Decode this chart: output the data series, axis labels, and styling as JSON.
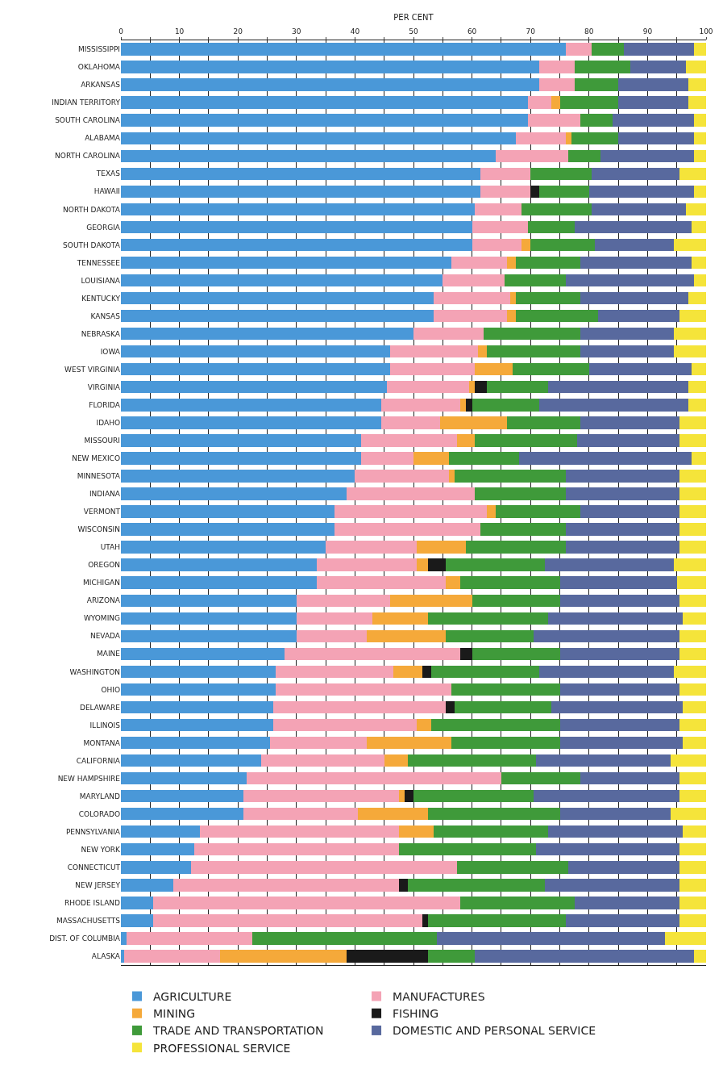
{
  "chart_data": {
    "type": "bar",
    "orientation": "horizontal",
    "stacked": true,
    "xlabel": "PER CENT",
    "categories": [
      "MISSISSIPPI",
      "OKLAHOMA",
      "ARKANSAS",
      "INDIAN TERRITORY",
      "SOUTH CAROLINA",
      "ALABAMA",
      "NORTH CAROLINA",
      "TEXAS",
      "HAWAII",
      "NORTH DAKOTA",
      "GEORGIA",
      "SOUTH DAKOTA",
      "TENNESSEE",
      "LOUISIANA",
      "KENTUCKY",
      "KANSAS",
      "NEBRASKA",
      "IOWA",
      "WEST VIRGINIA",
      "VIRGINIA",
      "FLORIDA",
      "IDAHO",
      "MISSOURI",
      "NEW MEXICO",
      "MINNESOTA",
      "INDIANA",
      "VERMONT",
      "WISCONSIN",
      "UTAH",
      "OREGON",
      "MICHIGAN",
      "ARIZONA",
      "WYOMING",
      "NEVADA",
      "MAINE",
      "WASHINGTON",
      "OHIO",
      "DELAWARE",
      "ILLINOIS",
      "MONTANA",
      "CALIFORNIA",
      "NEW HAMPSHIRE",
      "MARYLAND",
      "COLORADO",
      "PENNSYLVANIA",
      "NEW YORK",
      "CONNECTICUT",
      "NEW JERSEY",
      "RHODE ISLAND",
      "MASSACHUSETTS",
      "DIST. OF COLUMBIA",
      "ALASKA"
    ],
    "series": [
      {
        "name": "AGRICULTURE",
        "color": "#4a98d8",
        "values": [
          76,
          71.5,
          71.5,
          69.5,
          69.5,
          67.5,
          64,
          61.5,
          61.5,
          60.5,
          60,
          60,
          56.5,
          55,
          53.5,
          53.5,
          50,
          46,
          46,
          45.5,
          44.5,
          44.5,
          41,
          41,
          40,
          38.5,
          36.5,
          36.5,
          35,
          33.5,
          33.5,
          30,
          30,
          30,
          28,
          26.5,
          26.5,
          26,
          26,
          25.5,
          24,
          21.5,
          21,
          21,
          13.5,
          12.5,
          12,
          9,
          5.5,
          5.5,
          1,
          0.5
        ]
      },
      {
        "name": "MANUFACTURES",
        "color": "#f4a3b5",
        "values": [
          4.5,
          6,
          6,
          4,
          9,
          8.5,
          12.5,
          8.5,
          8.5,
          8,
          9.5,
          8.5,
          9.5,
          10.5,
          13,
          12.5,
          12,
          15,
          14.5,
          14,
          13.5,
          10,
          16.5,
          9,
          16,
          22,
          26,
          25,
          15.5,
          17,
          22,
          16,
          13,
          12,
          30,
          20,
          30,
          29.5,
          24.5,
          16.5,
          21,
          43.5,
          26.5,
          19.5,
          34,
          35,
          45.5,
          38.5,
          52.5,
          46,
          21.5,
          16.5
        ]
      },
      {
        "name": "MINING",
        "color": "#f5a93a",
        "values": [
          0,
          0,
          0,
          1.5,
          0,
          1,
          0,
          0,
          0,
          0,
          0,
          1.5,
          1.5,
          0,
          1,
          1.5,
          0,
          1.5,
          6.5,
          1,
          1,
          11.5,
          3,
          6,
          1,
          0,
          1.5,
          0,
          8.5,
          2,
          2.5,
          14,
          9.5,
          13.5,
          0,
          5,
          0,
          0,
          2.5,
          14.5,
          4,
          0,
          1,
          12,
          6,
          0,
          0,
          0,
          0,
          0,
          0,
          21.5
        ]
      },
      {
        "name": "FISHING",
        "color": "#1a1a1a",
        "values": [
          0,
          0,
          0,
          0,
          0,
          0,
          0,
          0,
          1.5,
          0,
          0,
          0,
          0,
          0,
          0,
          0,
          0,
          0,
          0,
          2,
          1,
          0,
          0,
          0,
          0,
          0,
          0,
          0,
          0,
          3,
          0,
          0,
          0,
          0,
          2,
          1.5,
          0,
          1.5,
          0,
          0,
          0,
          0,
          1.5,
          0,
          0,
          0,
          0,
          1.5,
          0,
          1,
          0,
          14
        ]
      },
      {
        "name": "TRADE AND TRANSPORTATION",
        "color": "#3f9a3a",
        "values": [
          5.5,
          9.5,
          7.5,
          10,
          5.5,
          8,
          5.5,
          10.5,
          8.5,
          12,
          8,
          11,
          11,
          10.5,
          11,
          14,
          16.5,
          16,
          13,
          10.5,
          11.5,
          12.5,
          17.5,
          12,
          19,
          15.5,
          14.5,
          14.5,
          17,
          17,
          17,
          15,
          20.5,
          15,
          15,
          18.5,
          18.5,
          16.5,
          22,
          18.5,
          22,
          13.5,
          20.5,
          22.5,
          19.5,
          23.5,
          19,
          23.5,
          19.5,
          23.5,
          31.5,
          8
        ]
      },
      {
        "name": "DOMESTIC AND PERSONAL SERVICE",
        "color": "#58699e",
        "values": [
          12,
          9.5,
          12,
          12,
          14,
          13,
          16,
          15,
          18,
          16,
          20,
          13.5,
          19,
          22,
          18.5,
          14,
          16,
          16,
          17.5,
          24,
          25.5,
          17,
          17.5,
          29.5,
          19.5,
          19.5,
          17,
          19.5,
          19.5,
          22,
          20,
          20.5,
          23,
          25,
          20.5,
          23,
          20.5,
          22.5,
          20.5,
          21,
          23,
          17,
          25,
          19,
          23,
          24.5,
          19,
          23,
          18,
          19.5,
          39,
          37.5
        ]
      },
      {
        "name": "PROFESSIONAL SERVICE",
        "color": "#f5e43a",
        "values": [
          2,
          3.5,
          3,
          3,
          2,
          2,
          2,
          4.5,
          2,
          3.5,
          2.5,
          5.5,
          2.5,
          2,
          3,
          4.5,
          5.5,
          5.5,
          2.5,
          3,
          3,
          4.5,
          4.5,
          2.5,
          4.5,
          4.5,
          4.5,
          4.5,
          4.5,
          5.5,
          5,
          4.5,
          4,
          4.5,
          4.5,
          5.5,
          4.5,
          4,
          4.5,
          4,
          6,
          4.5,
          4.5,
          6,
          4,
          4.5,
          4.5,
          4.5,
          4.5,
          4.5,
          7,
          2
        ]
      }
    ],
    "xlim": [
      0,
      100
    ],
    "xticks": [
      0,
      {
        "value": 5,
        "label": null
      },
      10,
      {
        "value": 15,
        "label": null
      },
      20,
      {
        "value": 25,
        "label": null
      },
      30,
      {
        "value": 35,
        "label": null
      },
      40,
      {
        "value": 45,
        "label": null
      },
      50,
      {
        "value": 55,
        "label": null
      },
      60,
      {
        "value": 65,
        "label": null
      },
      70,
      {
        "value": 75,
        "label": null
      },
      80,
      {
        "value": 85,
        "label": null
      },
      90,
      {
        "value": 95,
        "label": null
      },
      100
    ],
    "grid": "x",
    "legend": "bottom"
  }
}
